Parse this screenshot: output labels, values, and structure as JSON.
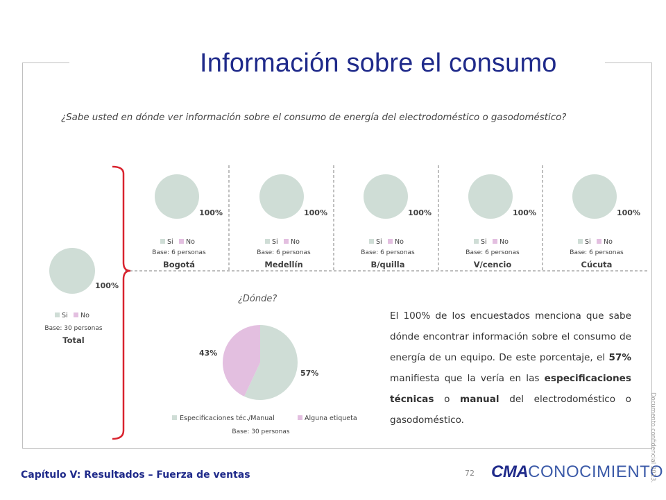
{
  "title": "Información sobre el consumo",
  "question": "¿Sabe usted en dónde ver información sobre el consumo de energía del electrodoméstico o gasodoméstico?",
  "where_label": "¿Dónde?",
  "description": {
    "part1": "El 100% de los encuestados menciona que sabe dónde encontrar información sobre el consumo de energía de un equipo. De este porcentaje, el ",
    "bold1": "57%",
    "part2": " manifiesta que la vería en las ",
    "bold2": "especificaciones técnicas",
    "part3": " o ",
    "bold3": "manual",
    "part4": " del electrodoméstico o gasodoméstico."
  },
  "footer": {
    "chapter": "Capítulo V: Resultados – Fuerza de ventas",
    "page": "72",
    "logo_cma": "CMA",
    "logo_rest": "CONOCIMIENTO",
    "confidential": "Documento confidencial 2013."
  },
  "colors": {
    "si": "#cfddd6",
    "no": "#e3bfe0",
    "title": "#1f2a8a",
    "bracket": "#d9232e"
  },
  "chart_data": [
    {
      "type": "pie",
      "name": "Total",
      "base": "Base: 30 personas",
      "categories": [
        "Si",
        "No"
      ],
      "values": [
        100,
        0
      ],
      "data_label": "100%"
    },
    {
      "type": "pie",
      "name": "Bogotá",
      "base": "Base: 6 personas",
      "categories": [
        "Si",
        "No"
      ],
      "values": [
        100,
        0
      ],
      "data_label": "100%"
    },
    {
      "type": "pie",
      "name": "Medellín",
      "base": "Base: 6 personas",
      "categories": [
        "Si",
        "No"
      ],
      "values": [
        100,
        0
      ],
      "data_label": "100%"
    },
    {
      "type": "pie",
      "name": "B/quilla",
      "base": "Base: 6 personas",
      "categories": [
        "Si",
        "No"
      ],
      "values": [
        100,
        0
      ],
      "data_label": "100%"
    },
    {
      "type": "pie",
      "name": "V/cencio",
      "base": "Base: 6 personas",
      "categories": [
        "Si",
        "No"
      ],
      "values": [
        100,
        0
      ],
      "data_label": "100%"
    },
    {
      "type": "pie",
      "name": "Cúcuta",
      "base": "Base: 6 personas",
      "categories": [
        "Si",
        "No"
      ],
      "values": [
        100,
        0
      ],
      "data_label": "100%"
    },
    {
      "type": "pie",
      "name": "",
      "base": "Base: 30 personas",
      "categories": [
        "Especificaciones téc./Manual",
        "Alguna etiqueta"
      ],
      "values": [
        57,
        43
      ],
      "data_labels": [
        "57%",
        "43%"
      ]
    }
  ]
}
